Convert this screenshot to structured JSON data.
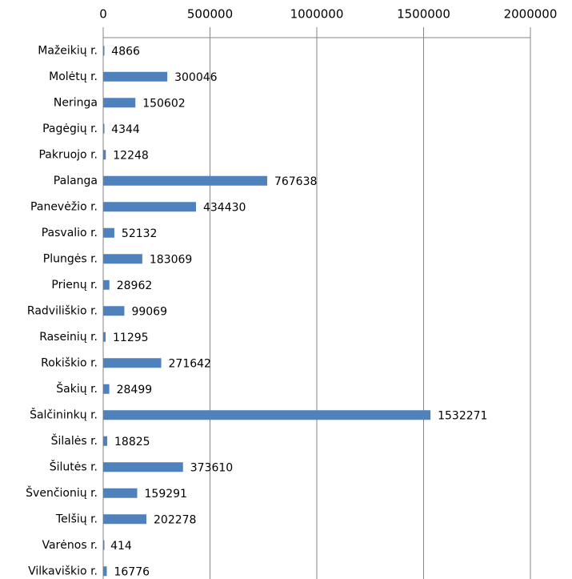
{
  "chart_data": {
    "type": "bar",
    "orientation": "horizontal",
    "categories": [
      "Mažeikių r.",
      "Molėtų r.",
      "Neringa",
      "Pagėgių r.",
      "Pakruojo r.",
      "Palanga",
      "Panevėžio r.",
      "Pasvalio r.",
      "Plungės r.",
      "Prienų r.",
      "Radviliškio r.",
      "Raseinių r.",
      "Rokiškio r.",
      "Šakių r.",
      "Šalčininkų r.",
      "Šilalės r.",
      "Šilutės r.",
      "Švenčionių r.",
      "Telšių r.",
      "Varėnos r.",
      "Vilkaviškio r."
    ],
    "values": [
      4866,
      300046,
      150602,
      4344,
      12248,
      767638,
      434430,
      52132,
      183069,
      28962,
      99069,
      11295,
      271642,
      28499,
      1532271,
      18825,
      373610,
      159291,
      202278,
      414,
      16776
    ],
    "color": "#4f81bd",
    "xlim": [
      0,
      2000000
    ],
    "xticks": [
      0,
      500000,
      1000000,
      1500000,
      2000000
    ],
    "grid": true
  }
}
